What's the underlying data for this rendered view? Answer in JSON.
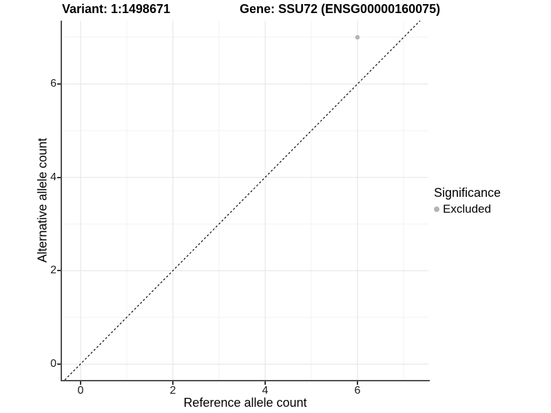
{
  "titles": {
    "variant": "Variant: 1:1498671",
    "gene": "Gene: SSU72 (ENSG00000160075)"
  },
  "axes": {
    "x_label": "Reference allele count",
    "y_label": "Alternative allele count",
    "x_ticks": [
      "0",
      "2",
      "4",
      "6"
    ],
    "y_ticks": [
      "0",
      "2",
      "4",
      "6"
    ]
  },
  "legend": {
    "title": "Significance",
    "items": [
      {
        "label": "Excluded",
        "color": "#b5b5b5"
      }
    ]
  },
  "colors": {
    "point": "#b5b5b5",
    "major_grid": "#e7e7e7",
    "minor_grid": "#f2f2f2",
    "axis_line": "#4d4d4d",
    "reference_line": "#000000"
  },
  "chart_data": {
    "type": "scatter",
    "title": "Variant: 1:1498671 | Gene: SSU72 (ENSG00000160075)",
    "xlabel": "Reference allele count",
    "ylabel": "Alternative allele count",
    "xlim": [
      -0.4,
      7.5
    ],
    "ylim": [
      -0.35,
      7.36
    ],
    "x_ticks": [
      0,
      2,
      4,
      6
    ],
    "y_ticks": [
      0,
      2,
      4,
      6
    ],
    "grid": true,
    "legend_position": "right",
    "legend_title": "Significance",
    "series": [
      {
        "name": "Excluded",
        "color": "#b5b5b5",
        "points": [
          {
            "x": 6,
            "y": 7
          }
        ]
      }
    ],
    "reference_line": {
      "equation": "y = x",
      "style": "dashed",
      "color": "#000000"
    }
  }
}
